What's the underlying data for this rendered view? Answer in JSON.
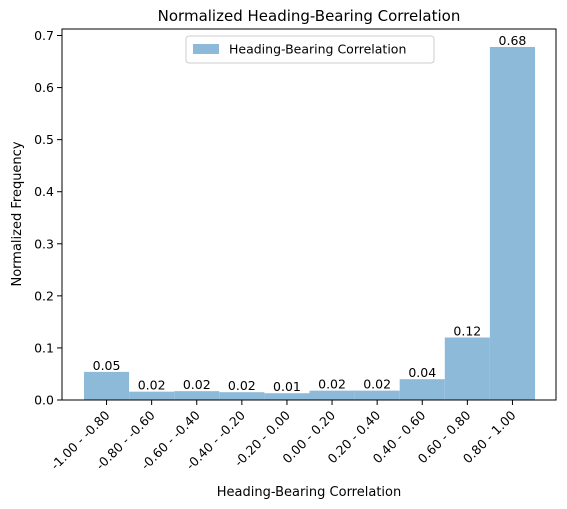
{
  "chart_data": {
    "type": "bar",
    "title": "Normalized Heading-Bearing Correlation",
    "xlabel": "Heading-Bearing Correlation",
    "ylabel": "Normalized Frequency",
    "categories": [
      "-1.00 - -0.80",
      "-0.80 - -0.60",
      "-0.60 - -0.40",
      "-0.40 - -0.20",
      "-0.20 - 0.00",
      "0.00 - 0.20",
      "0.20 - 0.40",
      "0.40 - 0.60",
      "0.60 - 0.80",
      "0.80 - 1.00"
    ],
    "values": [
      0.054,
      0.016,
      0.017,
      0.015,
      0.013,
      0.018,
      0.018,
      0.04,
      0.12,
      0.678
    ],
    "data_labels": [
      "0.05",
      "0.02",
      "0.02",
      "0.02",
      "0.01",
      "0.02",
      "0.02",
      "0.04",
      "0.12",
      "0.68"
    ],
    "series": [
      {
        "name": "Heading-Bearing Correlation"
      }
    ],
    "ylim": [
      0,
      0.71
    ],
    "yticks": [
      0.0,
      0.1,
      0.2,
      0.3,
      0.4,
      0.5,
      0.6,
      0.7
    ],
    "ytick_labels": [
      "0.0",
      "0.1",
      "0.2",
      "0.3",
      "0.4",
      "0.5",
      "0.6",
      "0.7"
    ],
    "bar_color": "#8dbad9",
    "legend_position": "top-center",
    "grid": false
  }
}
